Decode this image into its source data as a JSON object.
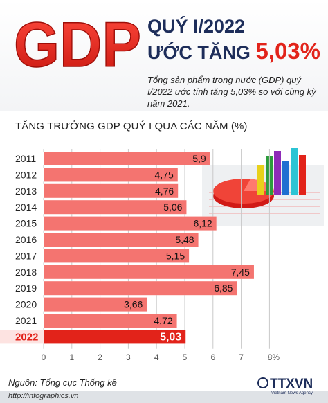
{
  "header": {
    "logo_text": "GDP",
    "line1": "QUÝ I/2022",
    "line2_prefix": "ƯỚC TĂNG",
    "line2_value": "5,03%",
    "description": "Tổng sản phẩm trong nước (GDP) quý I/2022 ước tính tăng 5,03% so với cùng kỳ năm 2021."
  },
  "colors": {
    "accent": "#e2231a",
    "bar": "#f47470",
    "bar_highlight": "#e2231a",
    "navy": "#1d2d5a"
  },
  "chart_data": {
    "type": "bar",
    "orientation": "horizontal",
    "title": "TĂNG TRƯỞNG GDP QUÝ I QUA CÁC NĂM (%)",
    "categories": [
      "2011",
      "2012",
      "2013",
      "2014",
      "2015",
      "2016",
      "2017",
      "2018",
      "2019",
      "2020",
      "2021",
      "2022"
    ],
    "values": [
      5.9,
      4.75,
      4.76,
      5.06,
      6.12,
      5.48,
      5.15,
      7.45,
      6.85,
      3.66,
      4.72,
      5.03
    ],
    "value_labels": [
      "5,9",
      "4,75",
      "4,76",
      "5,06",
      "6,12",
      "5,48",
      "5,15",
      "7,45",
      "6,85",
      "3,66",
      "4,72",
      "5,03"
    ],
    "highlight": "2022",
    "xlim": [
      0,
      8
    ],
    "x_ticks": [
      "0",
      "1",
      "2",
      "3",
      "4",
      "5",
      "6",
      "7",
      "8%"
    ]
  },
  "footer": {
    "source": "Nguồn: Tổng cục Thống kê",
    "url": "http://infographics.vn",
    "brand": "TTXVN",
    "brand_sub": "Vietnam News Agency"
  }
}
